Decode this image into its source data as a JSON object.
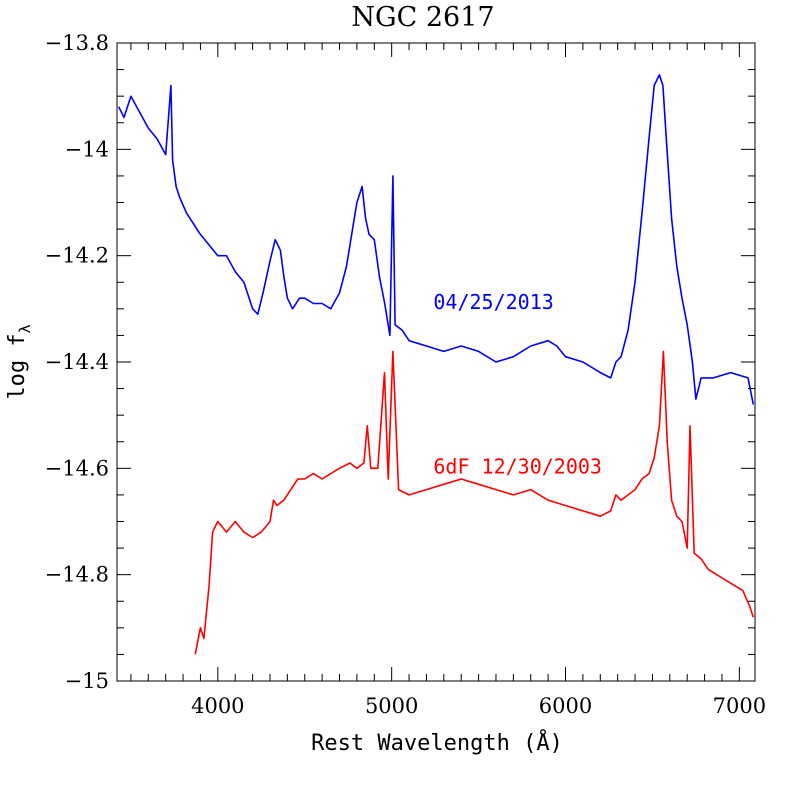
{
  "chart_data": {
    "type": "line",
    "title": "NGC 2617",
    "xlabel": "Rest Wavelength (Å)",
    "ylabel": "log f",
    "ylabel_subscript": "λ",
    "xlim": [
      3420,
      7090
    ],
    "ylim": [
      -15,
      -13.8
    ],
    "x_ticks": [
      4000,
      5000,
      6000,
      7000
    ],
    "x_tick_labels": [
      "4000",
      "5000",
      "6000",
      "7000"
    ],
    "y_ticks": [
      -13.8,
      -14,
      -14.2,
      -14.4,
      -14.6,
      -14.8,
      -15
    ],
    "y_tick_labels": [
      "−13.8",
      "−14",
      "−14.2",
      "−14.4",
      "−14.6",
      "−14.8",
      "−15"
    ],
    "grid": false,
    "series": [
      {
        "name": "04/25/2013",
        "color": "#0000ff",
        "label_anchor": [
          5240,
          -14.3
        ],
        "x": [
          3430,
          3460,
          3500,
          3550,
          3600,
          3650,
          3700,
          3730,
          3740,
          3760,
          3780,
          3820,
          3860,
          3900,
          3950,
          4000,
          4050,
          4100,
          4150,
          4200,
          4230,
          4260,
          4300,
          4330,
          4360,
          4380,
          4400,
          4430,
          4470,
          4500,
          4550,
          4600,
          4650,
          4700,
          4740,
          4780,
          4800,
          4830,
          4850,
          4870,
          4900,
          4930,
          4960,
          4990,
          5007,
          5020,
          5060,
          5100,
          5200,
          5300,
          5400,
          5500,
          5600,
          5700,
          5800,
          5900,
          5950,
          6000,
          6100,
          6200,
          6260,
          6290,
          6320,
          6360,
          6400,
          6440,
          6480,
          6510,
          6540,
          6560,
          6580,
          6610,
          6640,
          6670,
          6700,
          6730,
          6750,
          6780,
          6850,
          6950,
          7050,
          7080
        ],
        "y": [
          -13.92,
          -13.94,
          -13.9,
          -13.93,
          -13.96,
          -13.98,
          -14.01,
          -13.88,
          -14.02,
          -14.07,
          -14.09,
          -14.12,
          -14.14,
          -14.16,
          -14.18,
          -14.2,
          -14.2,
          -14.23,
          -14.25,
          -14.3,
          -14.31,
          -14.27,
          -14.21,
          -14.17,
          -14.19,
          -14.24,
          -14.28,
          -14.3,
          -14.28,
          -14.28,
          -14.29,
          -14.29,
          -14.3,
          -14.27,
          -14.22,
          -14.14,
          -14.1,
          -14.07,
          -14.13,
          -14.16,
          -14.17,
          -14.24,
          -14.29,
          -14.35,
          -14.05,
          -14.33,
          -14.34,
          -14.36,
          -14.37,
          -14.38,
          -14.37,
          -14.38,
          -14.4,
          -14.39,
          -14.37,
          -14.36,
          -14.37,
          -14.39,
          -14.4,
          -14.42,
          -14.43,
          -14.4,
          -14.39,
          -14.34,
          -14.25,
          -14.12,
          -13.98,
          -13.88,
          -13.86,
          -13.88,
          -13.98,
          -14.13,
          -14.22,
          -14.28,
          -14.33,
          -14.4,
          -14.47,
          -14.43,
          -14.43,
          -14.42,
          -14.43,
          -14.48
        ]
      },
      {
        "name": "6dF 12/30/2003",
        "color": "#ff0000",
        "label_anchor": [
          5240,
          -14.61
        ],
        "x": [
          3870,
          3900,
          3920,
          3950,
          3970,
          4000,
          4050,
          4100,
          4150,
          4200,
          4250,
          4300,
          4320,
          4340,
          4380,
          4420,
          4460,
          4500,
          4550,
          4600,
          4650,
          4700,
          4760,
          4800,
          4840,
          4860,
          4880,
          4920,
          4959,
          4980,
          5007,
          5040,
          5100,
          5200,
          5300,
          5400,
          5500,
          5600,
          5700,
          5800,
          5900,
          6000,
          6100,
          6200,
          6260,
          6290,
          6320,
          6360,
          6400,
          6440,
          6480,
          6510,
          6540,
          6563,
          6585,
          6610,
          6640,
          6670,
          6700,
          6716,
          6740,
          6780,
          6820,
          6870,
          6920,
          6970,
          7020,
          7060,
          7080
        ],
        "y": [
          -14.95,
          -14.9,
          -14.92,
          -14.82,
          -14.72,
          -14.7,
          -14.72,
          -14.7,
          -14.72,
          -14.73,
          -14.72,
          -14.7,
          -14.66,
          -14.67,
          -14.66,
          -14.64,
          -14.62,
          -14.62,
          -14.61,
          -14.62,
          -14.61,
          -14.6,
          -14.59,
          -14.6,
          -14.59,
          -14.52,
          -14.6,
          -14.6,
          -14.42,
          -14.62,
          -14.38,
          -14.64,
          -14.65,
          -14.64,
          -14.63,
          -14.62,
          -14.63,
          -14.64,
          -14.65,
          -14.64,
          -14.66,
          -14.67,
          -14.68,
          -14.69,
          -14.68,
          -14.65,
          -14.66,
          -14.65,
          -14.64,
          -14.62,
          -14.61,
          -14.58,
          -14.52,
          -14.38,
          -14.55,
          -14.66,
          -14.69,
          -14.7,
          -14.75,
          -14.52,
          -14.76,
          -14.77,
          -14.79,
          -14.8,
          -14.81,
          -14.82,
          -14.83,
          -14.86,
          -14.88
        ]
      }
    ]
  }
}
